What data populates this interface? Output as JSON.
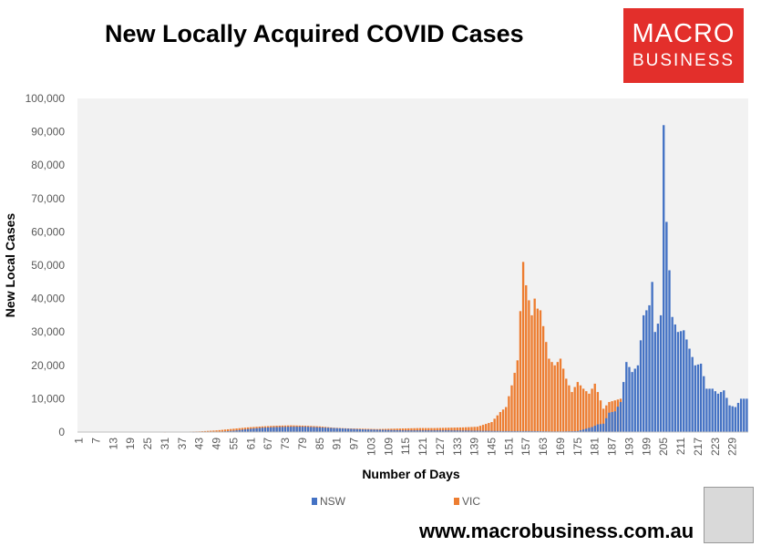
{
  "chart_data": {
    "type": "bar",
    "title": "New Locally Acquired COVID Cases",
    "xlabel": "Number of Days",
    "ylabel": "New Local Cases",
    "ylim": [
      0,
      100000
    ],
    "yticks": [
      "0",
      "10,000",
      "20,000",
      "30,000",
      "40,000",
      "50,000",
      "60,000",
      "70,000",
      "80,000",
      "90,000",
      "100,000"
    ],
    "xticks": [
      "1",
      "7",
      "13",
      "19",
      "25",
      "31",
      "37",
      "43",
      "49",
      "55",
      "61",
      "67",
      "73",
      "79",
      "85",
      "91",
      "97",
      "103",
      "109",
      "115",
      "121",
      "127",
      "133",
      "139",
      "145",
      "151",
      "157",
      "163",
      "169",
      "175",
      "181",
      "187",
      "193",
      "199",
      "205",
      "211",
      "217",
      "223",
      "229"
    ],
    "x_range": [
      1,
      234
    ],
    "grid": false,
    "legend": "bottom",
    "series": [
      {
        "name": "NSW",
        "color": "#4472c4",
        "values": [
          [
            1,
            0
          ],
          [
            10,
            0
          ],
          [
            20,
            0
          ],
          [
            30,
            0
          ],
          [
            40,
            0
          ],
          [
            50,
            100
          ],
          [
            55,
            400
          ],
          [
            60,
            900
          ],
          [
            65,
            1300
          ],
          [
            70,
            1500
          ],
          [
            75,
            1600
          ],
          [
            80,
            1600
          ],
          [
            85,
            1400
          ],
          [
            90,
            1200
          ],
          [
            95,
            1000
          ],
          [
            100,
            800
          ],
          [
            105,
            700
          ],
          [
            110,
            600
          ],
          [
            115,
            500
          ],
          [
            120,
            500
          ],
          [
            130,
            500
          ],
          [
            140,
            400
          ],
          [
            150,
            300
          ],
          [
            160,
            300
          ],
          [
            165,
            200
          ],
          [
            170,
            200
          ],
          [
            175,
            300
          ],
          [
            180,
            1500
          ],
          [
            182,
            2300
          ],
          [
            184,
            2500
          ],
          [
            186,
            5800
          ],
          [
            188,
            6200
          ],
          [
            190,
            9000
          ],
          [
            192,
            21000
          ],
          [
            194,
            18000
          ],
          [
            196,
            20000
          ],
          [
            198,
            35000
          ],
          [
            200,
            38000
          ],
          [
            201,
            45000
          ],
          [
            202,
            30000
          ],
          [
            204,
            35000
          ],
          [
            205,
            92000
          ],
          [
            206,
            63000
          ],
          [
            207,
            48500
          ],
          [
            208,
            34500
          ],
          [
            210,
            30000
          ],
          [
            212,
            30500
          ],
          [
            214,
            25000
          ],
          [
            216,
            20000
          ],
          [
            218,
            20500
          ],
          [
            220,
            13000
          ],
          [
            222,
            13000
          ],
          [
            224,
            11500
          ],
          [
            226,
            12500
          ],
          [
            228,
            8000
          ],
          [
            230,
            7500
          ],
          [
            232,
            10000
          ],
          [
            234,
            10000
          ]
        ]
      },
      {
        "name": "VIC",
        "color": "#ed7d31",
        "values": [
          [
            1,
            0
          ],
          [
            10,
            0
          ],
          [
            20,
            0
          ],
          [
            30,
            0
          ],
          [
            37,
            100
          ],
          [
            43,
            200
          ],
          [
            49,
            500
          ],
          [
            55,
            1000
          ],
          [
            60,
            1400
          ],
          [
            65,
            1700
          ],
          [
            70,
            1900
          ],
          [
            75,
            2000
          ],
          [
            80,
            1900
          ],
          [
            85,
            1700
          ],
          [
            90,
            1300
          ],
          [
            95,
            1100
          ],
          [
            100,
            1000
          ],
          [
            105,
            900
          ],
          [
            110,
            1000
          ],
          [
            115,
            1100
          ],
          [
            120,
            1200
          ],
          [
            125,
            1200
          ],
          [
            130,
            1300
          ],
          [
            135,
            1400
          ],
          [
            140,
            1600
          ],
          [
            145,
            3000
          ],
          [
            148,
            6000
          ],
          [
            150,
            7500
          ],
          [
            152,
            14000
          ],
          [
            154,
            21500
          ],
          [
            156,
            51000
          ],
          [
            157,
            44000
          ],
          [
            159,
            35000
          ],
          [
            160,
            40000
          ],
          [
            161,
            37000
          ],
          [
            162,
            36500
          ],
          [
            164,
            27000
          ],
          [
            165,
            22000
          ],
          [
            167,
            20000
          ],
          [
            169,
            22000
          ],
          [
            171,
            16000
          ],
          [
            173,
            12000
          ],
          [
            175,
            15000
          ],
          [
            177,
            13000
          ],
          [
            179,
            11500
          ],
          [
            181,
            14500
          ],
          [
            182,
            12000
          ],
          [
            184,
            7000
          ],
          [
            186,
            9000
          ],
          [
            188,
            9500
          ],
          [
            190,
            10000
          ]
        ]
      }
    ]
  },
  "footer": {
    "url": "www.macrobusiness.com.au"
  },
  "logo": {
    "line1": "MACRO",
    "line2": "BUSINESS"
  }
}
